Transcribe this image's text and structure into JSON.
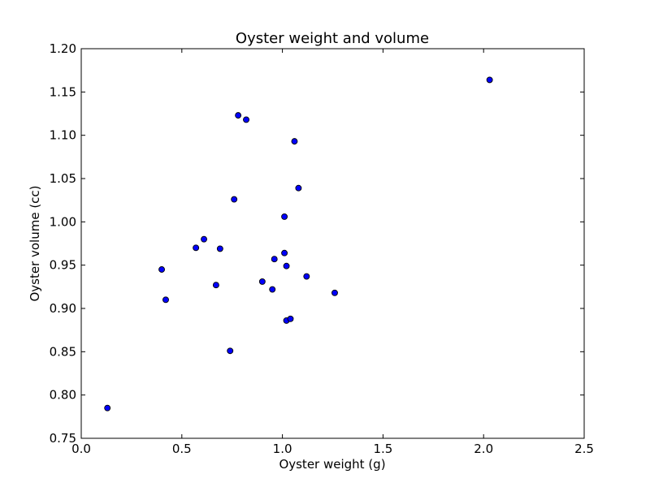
{
  "chart_data": {
    "type": "scatter",
    "title": "Oyster weight and volume",
    "xlabel": "Oyster weight (g)",
    "ylabel": "Oyster volume (cc)",
    "xlim": [
      0.0,
      2.5
    ],
    "ylim": [
      0.75,
      1.2
    ],
    "xticks": [
      "0.0",
      "0.5",
      "1.0",
      "1.5",
      "2.0",
      "2.5"
    ],
    "yticks": [
      "0.75",
      "0.80",
      "0.85",
      "0.90",
      "0.95",
      "1.00",
      "1.05",
      "1.10",
      "1.15",
      "1.20"
    ],
    "grid": false,
    "marker_color": "#0000ff",
    "marker_edge_color": "#000000",
    "points": [
      {
        "x": 0.13,
        "y": 0.785
      },
      {
        "x": 0.4,
        "y": 0.945
      },
      {
        "x": 0.42,
        "y": 0.91
      },
      {
        "x": 0.57,
        "y": 0.97
      },
      {
        "x": 0.61,
        "y": 0.98
      },
      {
        "x": 0.67,
        "y": 0.927
      },
      {
        "x": 0.69,
        "y": 0.969
      },
      {
        "x": 0.74,
        "y": 0.851
      },
      {
        "x": 0.76,
        "y": 1.026
      },
      {
        "x": 0.78,
        "y": 1.123
      },
      {
        "x": 0.82,
        "y": 1.118
      },
      {
        "x": 0.9,
        "y": 0.931
      },
      {
        "x": 0.95,
        "y": 0.922
      },
      {
        "x": 0.96,
        "y": 0.957
      },
      {
        "x": 1.01,
        "y": 1.006
      },
      {
        "x": 1.01,
        "y": 0.964
      },
      {
        "x": 1.02,
        "y": 0.949
      },
      {
        "x": 1.02,
        "y": 0.886
      },
      {
        "x": 1.04,
        "y": 0.888
      },
      {
        "x": 1.06,
        "y": 1.093
      },
      {
        "x": 1.08,
        "y": 1.039
      },
      {
        "x": 1.12,
        "y": 0.937
      },
      {
        "x": 1.26,
        "y": 0.918
      },
      {
        "x": 2.03,
        "y": 1.164
      }
    ]
  }
}
